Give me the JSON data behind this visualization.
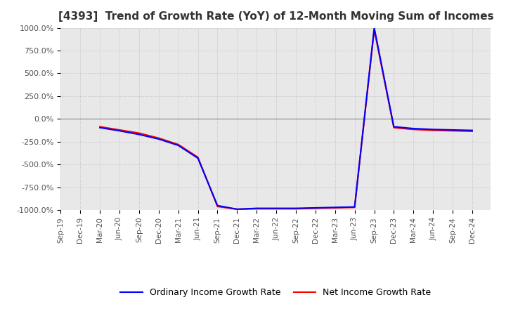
{
  "title": "[4393]  Trend of Growth Rate (YoY) of 12-Month Moving Sum of Incomes",
  "ylim": [
    -1000,
    1000
  ],
  "yticks": [
    -1000,
    -750,
    -500,
    -250,
    0,
    250,
    500,
    750,
    1000
  ],
  "ytick_labels": [
    "-1000.0%",
    "-750.0%",
    "-500.0%",
    "-250.0%",
    "0.0%",
    "250.0%",
    "500.0%",
    "750.0%",
    "1000.0%"
  ],
  "background_color": "#ffffff",
  "plot_bg_color": "#e8e8e8",
  "grid_color": "#ffffff",
  "legend_ordinary": "Ordinary Income Growth Rate",
  "legend_net": "Net Income Growth Rate",
  "ordinary_color": "#0000ff",
  "net_color": "#ff0000",
  "x_dates": [
    "Sep-19",
    "Dec-19",
    "Mar-20",
    "Jun-20",
    "Sep-20",
    "Dec-20",
    "Mar-21",
    "Jun-21",
    "Sep-21",
    "Dec-21",
    "Mar-22",
    "Jun-22",
    "Sep-22",
    "Dec-22",
    "Mar-23",
    "Jun-23",
    "Sep-23",
    "Dec-23",
    "Mar-24",
    "Jun-24",
    "Sep-24",
    "Dec-24"
  ],
  "ordinary_values": [
    null,
    null,
    -95,
    -130,
    -170,
    -220,
    -290,
    -430,
    -950,
    -990,
    -980,
    -980,
    -980,
    -975,
    -970,
    -965,
    1000,
    -85,
    -105,
    -115,
    -120,
    -125
  ],
  "net_values": [
    null,
    null,
    -85,
    -120,
    -155,
    -210,
    -280,
    -420,
    -960,
    -990,
    -985,
    -985,
    -985,
    -980,
    -975,
    -970,
    980,
    -95,
    -115,
    -125,
    -130,
    -135
  ]
}
